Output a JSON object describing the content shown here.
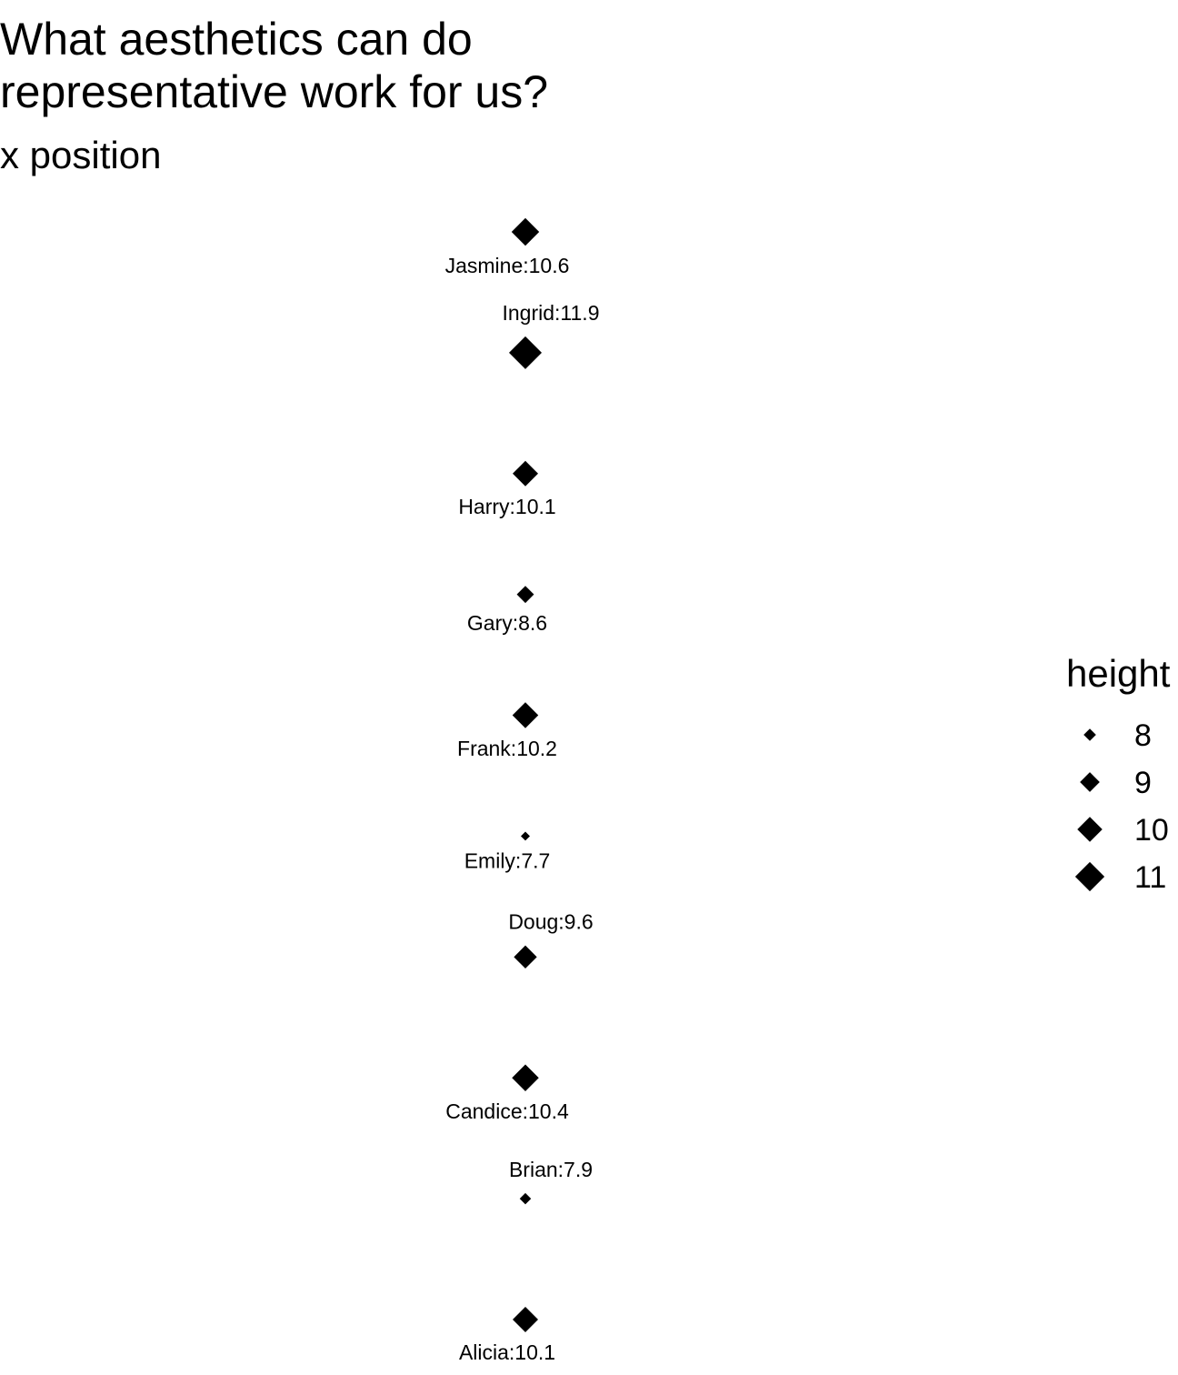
{
  "chart_data": {
    "type": "scatter",
    "title": "What aesthetics can do\nrepresentative work for us?",
    "subtitle": "x position",
    "xlabel": "",
    "ylabel": "",
    "grid": false,
    "size_aesthetic": "height",
    "points": [
      {
        "name": "Alicia",
        "height": 10.1,
        "label": "Alicia:10.1"
      },
      {
        "name": "Brian",
        "height": 7.9,
        "label": "Brian:7.9"
      },
      {
        "name": "Candice",
        "height": 10.4,
        "label": "Candice:10.4"
      },
      {
        "name": "Doug",
        "height": 9.6,
        "label": "Doug:9.6"
      },
      {
        "name": "Emily",
        "height": 7.7,
        "label": "Emily:7.7"
      },
      {
        "name": "Frank",
        "height": 10.2,
        "label": "Frank:10.2"
      },
      {
        "name": "Gary",
        "height": 8.6,
        "label": "Gary:8.6"
      },
      {
        "name": "Harry",
        "height": 10.1,
        "label": "Harry:10.1"
      },
      {
        "name": "Ingrid",
        "height": 11.9,
        "label": "Ingrid:11.9"
      },
      {
        "name": "Jasmine",
        "height": 10.6,
        "label": "Jasmine:10.6"
      }
    ],
    "legend": {
      "title": "height",
      "position": "right",
      "entries": [
        {
          "value": 8,
          "label": "8"
        },
        {
          "value": 9,
          "label": "9"
        },
        {
          "value": 10,
          "label": "10"
        },
        {
          "value": 11,
          "label": "11"
        }
      ]
    },
    "marker_shape": "diamond",
    "marker_color": "#000000"
  }
}
